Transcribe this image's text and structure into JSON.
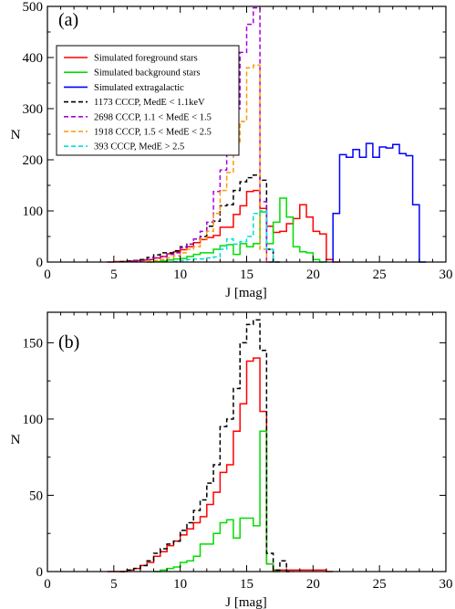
{
  "chart_data": [
    {
      "type": "step",
      "panel_label": "(a)",
      "xlabel": "J [mag]",
      "ylabel": "N",
      "xlim": [
        0,
        30
      ],
      "ylim": [
        0,
        500
      ],
      "xticks": [
        "0",
        "5",
        "10",
        "15",
        "20",
        "25",
        "30"
      ],
      "yticks": [
        "0",
        "100",
        "200",
        "300",
        "400",
        "500"
      ],
      "bin_width": 0.5,
      "legend_position": "top-left",
      "series": [
        {
          "name": "Simulated foreground stars",
          "color": "#ff0000",
          "dash": "solid",
          "x": [
            4.5,
            5,
            5.5,
            6,
            6.5,
            7,
            7.5,
            8,
            8.5,
            9,
            9.5,
            10,
            10.5,
            11,
            11.5,
            12,
            12.5,
            13,
            13.5,
            14,
            14.5,
            15,
            15.5,
            16,
            16.5,
            17,
            17.5,
            18,
            18.5,
            19,
            19.5,
            20,
            20.5,
            21,
            21.5
          ],
          "y": [
            0,
            1,
            1,
            2,
            3,
            4,
            5,
            8,
            11,
            16,
            20,
            24,
            30,
            38,
            44,
            48,
            52,
            68,
            68,
            93,
            110,
            138,
            140,
            105,
            70,
            58,
            60,
            75,
            85,
            112,
            88,
            60,
            55,
            5,
            0
          ]
        },
        {
          "name": "Simulated background stars",
          "color": "#00dd00",
          "dash": "solid",
          "x": [
            7.5,
            8,
            8.5,
            9,
            9.5,
            10,
            10.5,
            11,
            11.5,
            12,
            12.5,
            13,
            13.5,
            14,
            14.5,
            15,
            15.5,
            16,
            16.5,
            17,
            17.5,
            18,
            18.5,
            19,
            19.5,
            20,
            20.5
          ],
          "y": [
            0,
            1,
            2,
            4,
            6,
            7,
            11,
            15,
            18,
            18,
            25,
            32,
            34,
            15,
            36,
            30,
            36,
            98,
            36,
            78,
            125,
            88,
            30,
            20,
            18,
            5,
            0
          ]
        },
        {
          "name": "Simulated extragalactic",
          "color": "#0000ff",
          "dash": "solid",
          "x": [
            21.5,
            22,
            22.5,
            23,
            23.5,
            24,
            24.5,
            25,
            25.5,
            26,
            26.5,
            27,
            27.5,
            28
          ],
          "y": [
            95,
            210,
            205,
            220,
            205,
            232,
            205,
            225,
            223,
            230,
            212,
            208,
            112,
            0
          ]
        },
        {
          "name": "1173 CCCP, MedE < 1.1keV",
          "color": "#000000",
          "dash": "dashed",
          "x": [
            5.5,
            6,
            6.5,
            7,
            7.5,
            8,
            8.5,
            9,
            9.5,
            10,
            10.5,
            11,
            11.5,
            12,
            12.5,
            13,
            13.5,
            14,
            14.5,
            15,
            15.5,
            16,
            16.5,
            17
          ],
          "y": [
            1,
            2,
            3,
            5,
            9,
            14,
            18,
            18,
            22,
            30,
            35,
            45,
            50,
            70,
            80,
            110,
            112,
            140,
            157,
            165,
            170,
            160,
            25,
            0
          ]
        },
        {
          "name": "2698 CCCP, 1.1 < MedE < 1.5",
          "color": "#aa00dd",
          "dash": "dashed",
          "x": [
            6,
            6.5,
            7,
            7.5,
            8,
            8.5,
            9,
            9.5,
            10,
            10.5,
            11,
            11.5,
            12,
            12.5,
            13,
            13.5,
            14,
            14.5,
            15,
            15.5,
            16,
            16.5
          ],
          "y": [
            1,
            2,
            3,
            5,
            8,
            10,
            15,
            18,
            28,
            35,
            45,
            60,
            78,
            138,
            180,
            255,
            300,
            410,
            465,
            497,
            118,
            0
          ]
        },
        {
          "name": "1918 CCCP, 1.5 < MedE < 2.5",
          "color": "#ff9900",
          "dash": "dashed",
          "x": [
            7,
            7.5,
            8,
            8.5,
            9,
            9.5,
            10,
            10.5,
            11,
            11.5,
            12,
            12.5,
            13,
            13.5,
            14,
            14.5,
            15,
            15.5,
            16,
            16.5
          ],
          "y": [
            1,
            2,
            3,
            5,
            8,
            12,
            18,
            25,
            30,
            45,
            60,
            95,
            140,
            175,
            235,
            275,
            380,
            385,
            25,
            0
          ]
        },
        {
          "name": "393 CCCP, MedE > 2.5",
          "color": "#00dddd",
          "dash": "dashed",
          "x": [
            9.5,
            10,
            10.5,
            11,
            11.5,
            12,
            12.5,
            13,
            13.5,
            14,
            14.5,
            15,
            15.5,
            16,
            16.5,
            17
          ],
          "y": [
            1,
            3,
            5,
            6,
            6,
            8,
            10,
            25,
            45,
            35,
            40,
            50,
            95,
            100,
            25,
            0
          ]
        }
      ]
    },
    {
      "type": "step",
      "panel_label": "(b)",
      "xlabel": "J [mag]",
      "ylabel": "N",
      "xlim": [
        0,
        30
      ],
      "ylim": [
        0,
        170
      ],
      "xticks": [
        "0",
        "5",
        "10",
        "15",
        "20",
        "25",
        "30"
      ],
      "yticks": [
        "0",
        "50",
        "100",
        "150"
      ],
      "bin_width": 0.5,
      "series": [
        {
          "name": "",
          "color": "#ff0000",
          "dash": "solid",
          "x": [
            4.5,
            5,
            5.5,
            6,
            6.5,
            7,
            7.5,
            8,
            8.5,
            9,
            9.5,
            10,
            10.5,
            11,
            11.5,
            12,
            12.5,
            13,
            13.5,
            14,
            14.5,
            15,
            15.5,
            16,
            16.5,
            17,
            17.5,
            18,
            18.5,
            19,
            19.5,
            20,
            20.5,
            21
          ],
          "y": [
            0,
            0,
            0,
            1,
            2,
            4,
            6,
            10,
            13,
            17,
            20,
            24,
            28,
            32,
            36,
            44,
            52,
            65,
            70,
            92,
            110,
            138,
            140,
            105,
            5,
            1,
            1,
            1,
            1,
            1,
            1,
            1,
            1,
            0
          ]
        },
        {
          "name": "",
          "color": "#00dd00",
          "dash": "solid",
          "x": [
            8,
            8.5,
            9,
            9.5,
            10,
            10.5,
            11,
            11.5,
            12,
            12.5,
            13,
            13.5,
            14,
            14.5,
            15,
            15.5,
            16,
            16.5,
            17
          ],
          "y": [
            0,
            1,
            2,
            3,
            6,
            7,
            10,
            18,
            18,
            25,
            32,
            34,
            22,
            35,
            35,
            30,
            92,
            5,
            0
          ]
        },
        {
          "name": "",
          "color": "#000000",
          "dash": "dashed",
          "x": [
            5.5,
            6,
            6.5,
            7,
            7.5,
            8,
            8.5,
            9,
            9.5,
            10,
            10.5,
            11,
            11.5,
            12,
            12.5,
            13,
            13.5,
            14,
            14.5,
            15,
            15.5,
            16,
            16.5,
            17,
            17.5,
            18
          ],
          "y": [
            0,
            1,
            2,
            4,
            7,
            12,
            15,
            18,
            20,
            27,
            32,
            40,
            47,
            58,
            70,
            95,
            100,
            120,
            150,
            162,
            165,
            145,
            12,
            1,
            7,
            0
          ]
        }
      ]
    }
  ]
}
